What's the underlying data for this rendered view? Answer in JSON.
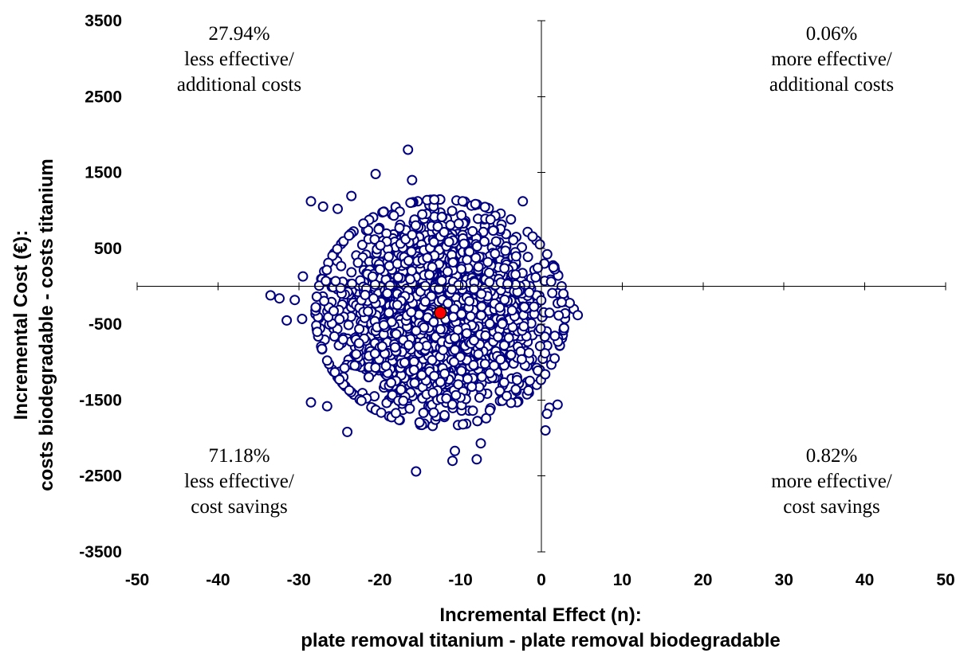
{
  "chart_data": {
    "type": "scatter",
    "xlabel": "Incremental Effect (n):",
    "xlabel_line2": "plate removal titanium - plate removal biodegradable",
    "ylabel": "Incremental Cost (€):",
    "ylabel_line2": "costs biodegradable - costs titanium",
    "xlim": [
      -50,
      50
    ],
    "ylim": [
      -3500,
      3500
    ],
    "x_ticks": [
      "-50",
      "-40",
      "-30",
      "-20",
      "-10",
      "0",
      "10",
      "20",
      "30",
      "40",
      "50"
    ],
    "y_ticks": [
      "3500",
      "2500",
      "1500",
      "500",
      "-500",
      "-1500",
      "-2500",
      "-3500"
    ],
    "grid": false,
    "marker_color": "#000080",
    "mean_color": "#ff0000",
    "mean": {
      "x": -12.5,
      "y": -350
    },
    "scatter_cloud": {
      "count": 2500,
      "center_x": -12.5,
      "center_y": -350,
      "sd_x": 6.2,
      "sd_y": 600
    },
    "outliers": [
      {
        "x": -16.5,
        "y": 1800
      },
      {
        "x": -20.5,
        "y": 1480
      },
      {
        "x": -16,
        "y": 1400
      },
      {
        "x": -28.5,
        "y": 1120
      },
      {
        "x": -27,
        "y": 1050
      },
      {
        "x": -23.5,
        "y": 1190
      },
      {
        "x": -25.2,
        "y": 1020
      },
      {
        "x": -2.3,
        "y": 1120
      },
      {
        "x": -33.5,
        "y": -120
      },
      {
        "x": -32.4,
        "y": -160
      },
      {
        "x": -31.5,
        "y": -450
      },
      {
        "x": -29.6,
        "y": -430
      },
      {
        "x": -30.5,
        "y": -180
      },
      {
        "x": -29.5,
        "y": 130
      },
      {
        "x": 1.5,
        "y": 250
      },
      {
        "x": 4,
        "y": -300
      },
      {
        "x": 4.5,
        "y": -380
      },
      {
        "x": 3.5,
        "y": -220
      },
      {
        "x": 2.5,
        "y": -210
      },
      {
        "x": 1.2,
        "y": 60
      },
      {
        "x": -28.5,
        "y": -1530
      },
      {
        "x": -26.5,
        "y": -1580
      },
      {
        "x": -24,
        "y": -1920
      },
      {
        "x": -15.5,
        "y": -2440
      },
      {
        "x": -11,
        "y": -2300
      },
      {
        "x": -10.7,
        "y": -2170
      },
      {
        "x": -8,
        "y": -2280
      },
      {
        "x": -7.5,
        "y": -2070
      },
      {
        "x": 0.5,
        "y": -1900
      },
      {
        "x": 1,
        "y": -1600
      },
      {
        "x": 2,
        "y": -1560
      },
      {
        "x": 0.7,
        "y": -1680
      }
    ],
    "quadrants": [
      {
        "pos": "top-left",
        "pct": "27.94%",
        "line1": "less effective/",
        "line2": "additional costs"
      },
      {
        "pos": "top-right",
        "pct": "0.06%",
        "line1": "more effective/",
        "line2": "additional costs"
      },
      {
        "pos": "bottom-left",
        "pct": "71.18%",
        "line1": "less effective/",
        "line2": "cost savings"
      },
      {
        "pos": "bottom-right",
        "pct": "0.82%",
        "line1": "more effective/",
        "line2": "cost savings"
      }
    ]
  }
}
